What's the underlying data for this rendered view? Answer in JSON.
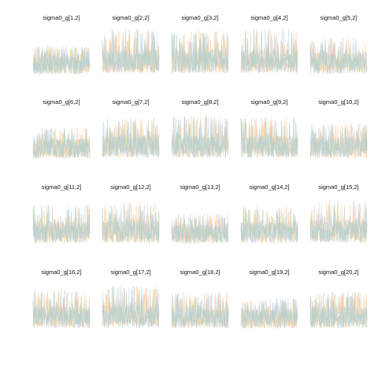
{
  "chart_data": {
    "type": "line",
    "title": "",
    "xlabel": "",
    "ylabel": "",
    "grid": false,
    "legend": "none",
    "axes_visible": false,
    "layout": {
      "rows": 4,
      "cols": 5
    },
    "chains": [
      {
        "color": "#f7c4a8"
      },
      {
        "color": "#fbd9a0"
      },
      {
        "color": "#c9dceb"
      },
      {
        "color": "#b6cfc7"
      }
    ],
    "panels": [
      {
        "title": "sigma0_g[1,2]",
        "spread": 0.55
      },
      {
        "title": "sigma0_g[2,2]",
        "spread": 0.95
      },
      {
        "title": "sigma0_g[3,2]",
        "spread": 0.9
      },
      {
        "title": "sigma0_g[4,2]",
        "spread": 0.95
      },
      {
        "title": "sigma0_g[5,2]",
        "spread": 0.75
      },
      {
        "title": "sigma0_g[6,2]",
        "spread": 0.6
      },
      {
        "title": "sigma0_g[7,2]",
        "spread": 0.85
      },
      {
        "title": "sigma0_g[8,2]",
        "spread": 0.9
      },
      {
        "title": "sigma0_g[9,2]",
        "spread": 0.85
      },
      {
        "title": "sigma0_g[10,2]",
        "spread": 0.7
      },
      {
        "title": "sigma0_g[11,2]",
        "spread": 0.8
      },
      {
        "title": "sigma0_g[12,2]",
        "spread": 0.85
      },
      {
        "title": "sigma0_g[13,2]",
        "spread": 0.6
      },
      {
        "title": "sigma0_g[14,2]",
        "spread": 0.75
      },
      {
        "title": "sigma0_g[15,2]",
        "spread": 0.9
      },
      {
        "title": "sigma0_g[16,2]",
        "spread": 0.8
      },
      {
        "title": "sigma0_g[17,2]",
        "spread": 0.9
      },
      {
        "title": "sigma0_g[18,2]",
        "spread": 0.75
      },
      {
        "title": "sigma0_g[19,2]",
        "spread": 0.6
      },
      {
        "title": "sigma0_g[20,2]",
        "spread": 0.75
      }
    ]
  }
}
